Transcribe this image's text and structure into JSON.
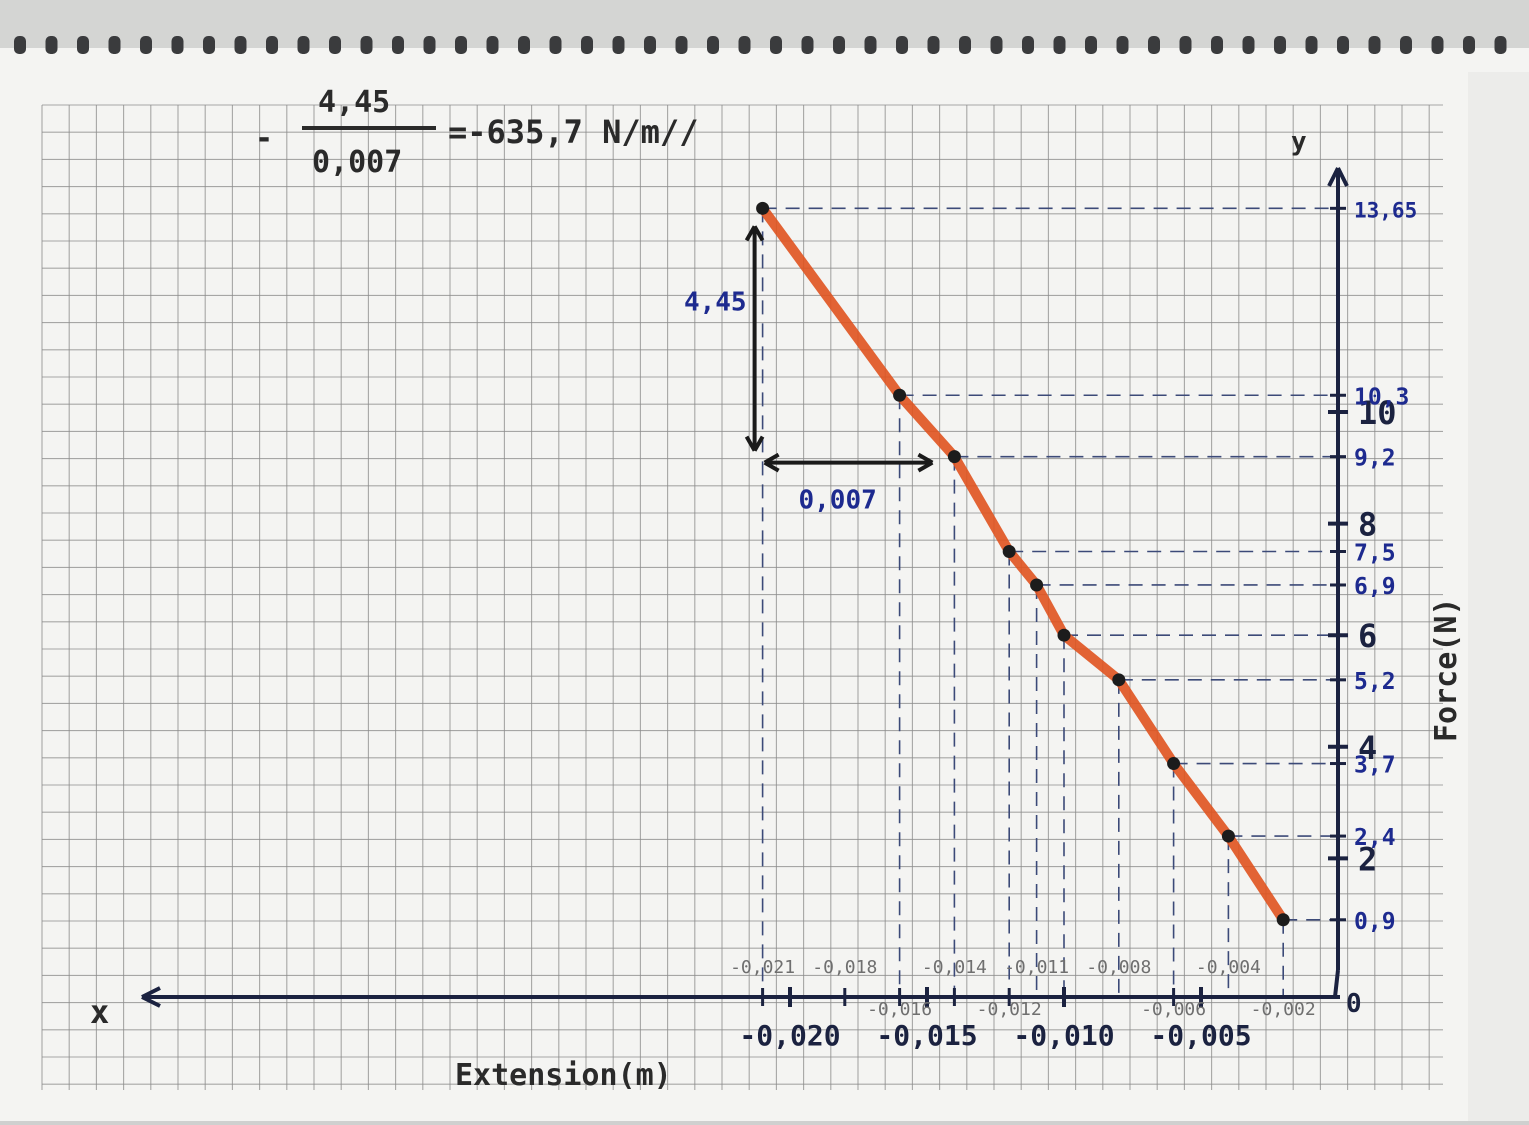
{
  "chart_data": {
    "type": "line",
    "title": "",
    "xlabel": "Extension(m)",
    "ylabel": "Force(N)",
    "x_axis_name": "x",
    "y_axis_name": "y",
    "origin_label": "0",
    "xlim": [
      -0.0223,
      0.0
    ],
    "ylim": [
      0,
      14.0
    ],
    "grid": true,
    "series": [
      {
        "x": [
          -0.021,
          -0.016,
          -0.014,
          -0.012,
          -0.011,
          -0.01,
          -0.008,
          -0.006,
          -0.004,
          -0.002
        ],
        "y": [
          13.65,
          10.3,
          9.2,
          7.5,
          6.9,
          6.0,
          5.2,
          3.7,
          2.4,
          0.9
        ]
      }
    ],
    "x_major_ticks": [
      -0.02,
      -0.015,
      -0.01,
      -0.005
    ],
    "x_major_labels": [
      "-0,020",
      "-0,015",
      "-0,010",
      "-0,005"
    ],
    "x_point_labels": [
      "-0,021",
      "-0,018",
      "-0,016",
      "-0,014",
      "-0,012",
      "-0,011",
      "-0,008",
      "-0,006",
      "-0,004",
      "-0,002"
    ],
    "x_point_label_values": [
      -0.021,
      -0.018,
      -0.016,
      -0.014,
      -0.012,
      -0.011,
      -0.008,
      -0.006,
      -0.004,
      -0.002
    ],
    "y_major_ticks": [
      2,
      4,
      6,
      8,
      10
    ],
    "y_major_labels": [
      "2",
      "4",
      "6",
      "8",
      "10"
    ],
    "y_point_ticks": [
      0.9,
      2.4,
      3.7,
      5.2,
      6.9,
      7.5,
      9.2,
      10.3,
      13.65
    ],
    "y_point_labels": [
      "0,9",
      "2,4",
      "3,7",
      "5,2",
      "6,9",
      "7,5",
      "9,2",
      "10,3",
      "13,65"
    ],
    "annotations": {
      "slope_numerator": "4,45",
      "slope_denominator": "0,007",
      "slope_minus": "-",
      "slope_result": "=-635,7 N/m//",
      "rise_label": "4,45",
      "run_label": "0,007",
      "rise_from": [
        -0.021,
        13.65
      ],
      "rise_to": [
        -0.021,
        9.2
      ],
      "run_from": [
        -0.021,
        9.2
      ],
      "run_to": [
        -0.014,
        9.2
      ]
    },
    "colors": {
      "line": "#e0531f",
      "points": "#1c1c1c",
      "ink": "#1b2240",
      "labels_blue": "#1d2a8f",
      "grid": "#8c8c8c",
      "paper": "#f4f4f2"
    }
  }
}
